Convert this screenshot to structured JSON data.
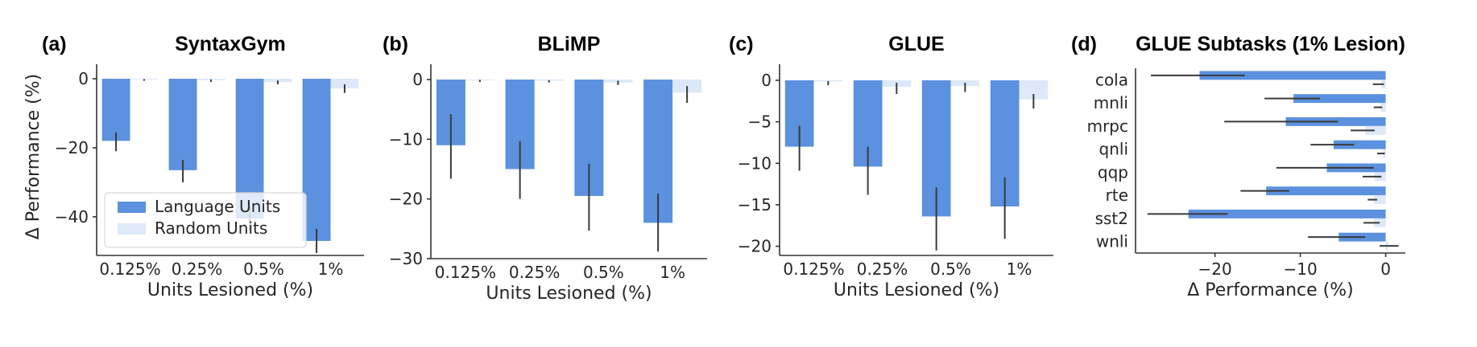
{
  "colors": {
    "language_units": "#5b91de",
    "random_units": "#dde8f8",
    "error_bar": "#3a3a3a",
    "axis": "#333333",
    "text": "#262626",
    "legend_border": "#d9d9d9",
    "background": "#ffffff"
  },
  "chart_data": [
    {
      "type": "bar",
      "letter": "(a)",
      "title": "SyntaxGym",
      "categories": [
        "0.125%",
        "0.25%",
        "0.5%",
        "1%"
      ],
      "xlabel": "Units Lesioned (%)",
      "ylabel": "Δ Performance (%)",
      "ylim": [
        -51.2,
        4.2
      ],
      "yticks": [
        0,
        -20,
        -40
      ],
      "legend": true,
      "legend_position": "lower-left",
      "series": [
        {
          "name": "Language Units",
          "values": [
            -18,
            -26.5,
            -40.5,
            -47
          ],
          "errors": [
            [
              -21,
              -15.5
            ],
            [
              -30,
              -23.5
            ],
            [
              -44,
              -37
            ],
            [
              -50.5,
              -43.5
            ]
          ]
        },
        {
          "name": "Random Units",
          "values": [
            -0.2,
            -0.4,
            -1.0,
            -2.8
          ],
          "errors": [
            [
              -0.6,
              -0.1
            ],
            [
              -0.9,
              -0.2
            ],
            [
              -1.6,
              -0.5
            ],
            [
              -4.1,
              -1.6
            ]
          ]
        }
      ]
    },
    {
      "type": "bar",
      "letter": "(b)",
      "title": "BLiMP",
      "categories": [
        "0.125%",
        "0.25%",
        "0.5%",
        "1%"
      ],
      "xlabel": "Units Lesioned (%)",
      "ylabel": "",
      "ylim": [
        -30,
        2.56
      ],
      "yticks": [
        0,
        -10,
        -20,
        -30
      ],
      "legend": false,
      "series": [
        {
          "name": "Language Units",
          "values": [
            -11,
            -15,
            -19.5,
            -24
          ],
          "errors": [
            [
              -16.6,
              -5.8
            ],
            [
              -20,
              -10.3
            ],
            [
              -25.3,
              -14.1
            ],
            [
              -28.8,
              -19.1
            ]
          ]
        },
        {
          "name": "Random Units",
          "values": [
            -0.15,
            -0.2,
            -0.5,
            -2.2
          ],
          "errors": [
            [
              -0.4,
              -0.05
            ],
            [
              -0.5,
              -0.1
            ],
            [
              -0.9,
              -0.2
            ],
            [
              -3.9,
              -1.1
            ]
          ]
        }
      ]
    },
    {
      "type": "bar",
      "letter": "(c)",
      "title": "GLUE",
      "categories": [
        "0.125%",
        "0.25%",
        "0.5%",
        "1%"
      ],
      "xlabel": "Units Lesioned (%)",
      "ylabel": "",
      "ylim": [
        -21.1,
        1.93
      ],
      "yticks": [
        0,
        -5,
        -10,
        -15,
        -20
      ],
      "legend": false,
      "series": [
        {
          "name": "Language Units",
          "values": [
            -8,
            -10.4,
            -16.4,
            -15.2
          ],
          "errors": [
            [
              -10.9,
              -5.5
            ],
            [
              -13.8,
              -8
            ],
            [
              -20.5,
              -12.9
            ],
            [
              -19.1,
              -11.7
            ]
          ]
        },
        {
          "name": "Random Units",
          "values": [
            -0.15,
            -0.8,
            -0.7,
            -2.3
          ],
          "errors": [
            [
              -0.6,
              -0.1
            ],
            [
              -1.65,
              -0.3
            ],
            [
              -1.4,
              -0.3
            ],
            [
              -3.4,
              -1.65
            ]
          ]
        }
      ]
    },
    {
      "type": "barh",
      "letter": "(d)",
      "title": "GLUE Subtasks (1% Lesion)",
      "categories": [
        "cola",
        "mnli",
        "mrpc",
        "qnli",
        "qqp",
        "rte",
        "sst2",
        "wnli"
      ],
      "xlabel": "Δ Performance (%)",
      "ylabel": "",
      "xlim": [
        -29.3,
        2.3
      ],
      "xticks": [
        -20,
        -10,
        0
      ],
      "legend": false,
      "series": [
        {
          "name": "Language Units",
          "values": [
            -21.8,
            -10.8,
            -11.7,
            -6.1,
            -6.9,
            -14,
            -23.1,
            -5.5
          ],
          "errors": [
            [
              -27.5,
              -16.5
            ],
            [
              -14.2,
              -7.7
            ],
            [
              -18.9,
              -5.6
            ],
            [
              -8.8,
              -3.7
            ],
            [
              -12.8,
              -1.4
            ],
            [
              -17,
              -11.3
            ],
            [
              -27.9,
              -18.5
            ],
            [
              -9.1,
              -2.4
            ]
          ]
        },
        {
          "name": "Random Units",
          "values": [
            -0.5,
            -0.6,
            -2.4,
            -0.3,
            -1.3,
            -1.4,
            -1.4,
            0.3
          ],
          "errors": [
            [
              -1.5,
              -0.2
            ],
            [
              -1.4,
              -0.4
            ],
            [
              -4.1,
              -1.3
            ],
            [
              -1,
              -0.1
            ],
            [
              -2.7,
              -0.5
            ],
            [
              -2.1,
              -1
            ],
            [
              -2.6,
              -0.7
            ],
            [
              -0.7,
              1.5
            ]
          ]
        }
      ]
    }
  ]
}
